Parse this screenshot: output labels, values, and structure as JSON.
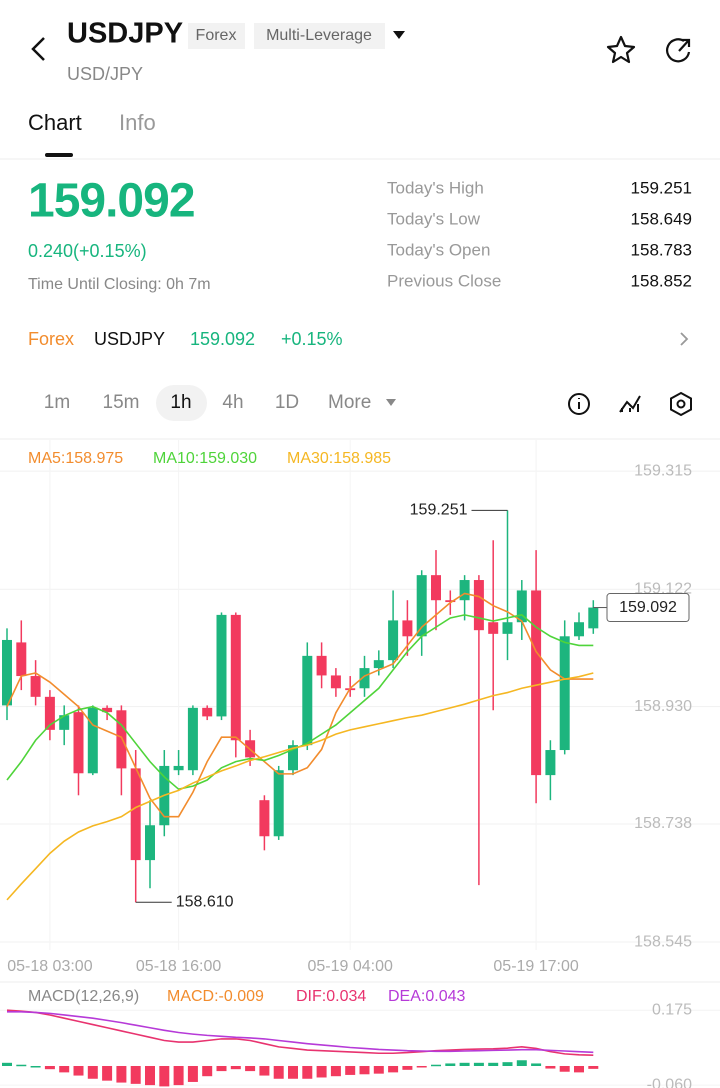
{
  "header": {
    "title": "USDJPY",
    "tags": [
      "Forex",
      "Multi-Leverage"
    ],
    "subtitle": "USD/JPY"
  },
  "tabs": [
    "Chart",
    "Info"
  ],
  "quote": {
    "price": "159.092",
    "change": "0.240(+0.15%)",
    "closing": "Time Until Closing: 0h 7m"
  },
  "stats": [
    [
      "Today's High",
      "159.251"
    ],
    [
      "Today's Low",
      "158.649"
    ],
    [
      "Today's Open",
      "158.783"
    ],
    [
      "Previous Close",
      "158.852"
    ]
  ],
  "ticker": {
    "market": "Forex",
    "symbol": "USDJPY",
    "price": "159.092",
    "change": "+0.15%"
  },
  "intervals": [
    "1m",
    "15m",
    "1h",
    "4h",
    "1D",
    "More"
  ],
  "chart_data": [
    {
      "type": "candlestick",
      "categories": [
        null,
        null,
        null,
        "05-18 03:00",
        null,
        null,
        null,
        null,
        null,
        null,
        null,
        null,
        "05-18 16:00",
        null,
        null,
        null,
        null,
        null,
        null,
        null,
        null,
        null,
        null,
        null,
        "05-19 04:00",
        null,
        null,
        null,
        null,
        null,
        null,
        null,
        null,
        null,
        null,
        null,
        null,
        "05-19 17:00",
        null,
        null,
        null,
        null
      ],
      "open": [
        158.932,
        159.035,
        158.98,
        158.946,
        158.892,
        158.921,
        158.821,
        158.928,
        158.924,
        158.829,
        158.679,
        158.736,
        158.826,
        158.826,
        158.928,
        158.914,
        159.08,
        158.875,
        158.777,
        158.718,
        158.826,
        158.867,
        159.013,
        158.981,
        158.96,
        158.96,
        158.993,
        159.006,
        159.071,
        159.045,
        159.145,
        159.104,
        159.104,
        159.137,
        159.068,
        159.049,
        159.068,
        159.12,
        158.818,
        158.859,
        159.045,
        159.058
      ],
      "high": [
        159.058,
        159.071,
        159.006,
        158.957,
        158.932,
        158.932,
        158.932,
        158.932,
        158.932,
        158.859,
        158.777,
        158.859,
        158.859,
        158.932,
        158.932,
        159.084,
        159.084,
        158.892,
        158.785,
        158.833,
        158.875,
        159.035,
        159.035,
        158.993,
        158.98,
        159.013,
        159.022,
        159.12,
        159.104,
        159.153,
        159.186,
        159.12,
        159.145,
        159.145,
        159.202,
        159.251,
        159.137,
        159.186,
        158.875,
        159.071,
        159.084,
        159.104
      ],
      "low": [
        158.908,
        158.957,
        158.932,
        158.875,
        158.867,
        158.785,
        158.818,
        158.908,
        158.785,
        158.61,
        158.633,
        158.718,
        158.818,
        158.818,
        158.908,
        158.908,
        158.847,
        158.833,
        158.695,
        158.712,
        158.818,
        158.859,
        158.96,
        158.946,
        158.946,
        158.946,
        158.981,
        158.993,
        159.013,
        159.013,
        159.055,
        159.08,
        159.071,
        158.638,
        158.924,
        159.006,
        159.039,
        158.772,
        158.777,
        158.852,
        159.039,
        159.049
      ],
      "close": [
        159.039,
        158.98,
        158.946,
        158.892,
        158.916,
        158.821,
        158.928,
        158.921,
        158.829,
        158.679,
        158.736,
        158.833,
        158.833,
        158.928,
        158.914,
        159.08,
        158.875,
        158.847,
        158.718,
        158.826,
        158.867,
        159.013,
        158.981,
        158.96,
        158.957,
        158.993,
        159.006,
        159.071,
        159.045,
        159.145,
        159.104,
        159.101,
        159.137,
        159.055,
        159.049,
        159.068,
        159.12,
        158.818,
        158.859,
        159.045,
        159.068,
        159.092
      ],
      "up_color": "#1db57e",
      "down_color": "#f23a5e",
      "ylim": [
        158.532,
        159.366
      ],
      "yticks": [
        159.315,
        159.122,
        {
          "value": 158.93,
          "label": "158.930"
        },
        158.738,
        158.545
      ],
      "grid": true,
      "series": [
        {
          "name": "MA5:158.975",
          "color": "#f28c2d",
          "values": [
            158.93,
            158.98,
            158.985,
            158.97,
            158.95,
            158.93,
            158.9,
            158.89,
            158.88,
            158.83,
            158.78,
            158.75,
            158.75,
            158.79,
            158.84,
            158.88,
            158.88,
            158.86,
            158.84,
            158.82,
            158.82,
            158.83,
            158.86,
            158.92,
            158.96,
            158.98,
            158.99,
            159.0,
            159.03,
            159.06,
            159.08,
            159.1,
            159.115,
            159.11,
            159.095,
            159.085,
            159.07,
            159.02,
            158.99,
            158.975,
            158.975,
            158.975
          ]
        },
        {
          "name": "MA10:159.030",
          "color": "#4fd43a",
          "values": [
            158.81,
            158.84,
            158.875,
            158.9,
            158.915,
            158.925,
            158.93,
            158.92,
            158.9,
            158.87,
            158.84,
            158.815,
            158.795,
            158.8,
            158.81,
            158.83,
            158.84,
            158.845,
            158.842,
            158.85,
            158.86,
            158.87,
            158.885,
            158.9,
            158.92,
            158.94,
            158.96,
            158.99,
            159.02,
            159.045,
            159.06,
            159.075,
            159.08,
            159.075,
            159.07,
            159.075,
            159.08,
            159.06,
            159.045,
            159.035,
            159.03,
            159.03
          ]
        },
        {
          "name": "MA30:158.985",
          "color": "#f5b722",
          "values": [
            158.614,
            158.64,
            158.665,
            158.69,
            158.71,
            158.725,
            158.735,
            158.742,
            158.75,
            158.765,
            158.775,
            158.785,
            158.793,
            158.805,
            158.815,
            158.825,
            158.833,
            158.842,
            158.848,
            158.855,
            158.862,
            158.867,
            158.875,
            158.885,
            158.892,
            158.897,
            158.902,
            158.907,
            158.912,
            158.916,
            158.922,
            158.928,
            158.934,
            158.941,
            158.948,
            158.953,
            158.96,
            158.965,
            158.97,
            158.975,
            158.979,
            158.985
          ]
        }
      ],
      "annotations": {
        "high": {
          "value": 159.251
        },
        "low": {
          "value": 158.61,
          "label": "158.610"
        },
        "last": {
          "value": 159.092
        }
      }
    },
    {
      "type": "macd",
      "title": "MACD(12,26,9)",
      "ylim": [
        -0.069,
        0.254
      ],
      "yticks": [
        0.175,
        {
          "value": -0.06,
          "label": "-0.060"
        }
      ],
      "up_color": "#1db57e",
      "down_color": "#f23a5e",
      "histogram": {
        "name": "MACD:-0.009",
        "color": "#f28c2d",
        "values": [
          0.01,
          0.004,
          0,
          -0.01,
          -0.02,
          -0.03,
          -0.04,
          -0.046,
          -0.052,
          -0.056,
          -0.06,
          -0.064,
          -0.06,
          -0.05,
          -0.032,
          -0.016,
          -0.01,
          -0.016,
          -0.03,
          -0.04,
          -0.04,
          -0.04,
          -0.036,
          -0.032,
          -0.028,
          -0.026,
          -0.024,
          -0.02,
          -0.012,
          -0.004,
          0.004,
          0.008,
          0.01,
          0.01,
          0.01,
          0.012,
          0.018,
          0.008,
          -0.008,
          -0.018,
          -0.02,
          -0.009
        ]
      },
      "series": [
        {
          "name": "DIF:0.034",
          "color": "#e8336f",
          "values": [
            0.175,
            0.172,
            0.168,
            0.16,
            0.15,
            0.14,
            0.13,
            0.12,
            0.11,
            0.1,
            0.09,
            0.08,
            0.075,
            0.075,
            0.08,
            0.085,
            0.085,
            0.08,
            0.07,
            0.06,
            0.055,
            0.05,
            0.048,
            0.046,
            0.044,
            0.042,
            0.04,
            0.04,
            0.042,
            0.045,
            0.048,
            0.05,
            0.052,
            0.053,
            0.054,
            0.056,
            0.06,
            0.055,
            0.045,
            0.038,
            0.035,
            0.034
          ]
        },
        {
          "name": "DEA:0.043",
          "color": "#b63ad8",
          "values": [
            0.17,
            0.17,
            0.168,
            0.165,
            0.16,
            0.155,
            0.15,
            0.143,
            0.136,
            0.128,
            0.12,
            0.112,
            0.105,
            0.1,
            0.096,
            0.093,
            0.09,
            0.088,
            0.085,
            0.08,
            0.075,
            0.07,
            0.066,
            0.062,
            0.058,
            0.055,
            0.052,
            0.05,
            0.048,
            0.047,
            0.046,
            0.046,
            0.047,
            0.048,
            0.049,
            0.05,
            0.051,
            0.051,
            0.049,
            0.047,
            0.045,
            0.043
          ]
        }
      ]
    }
  ]
}
